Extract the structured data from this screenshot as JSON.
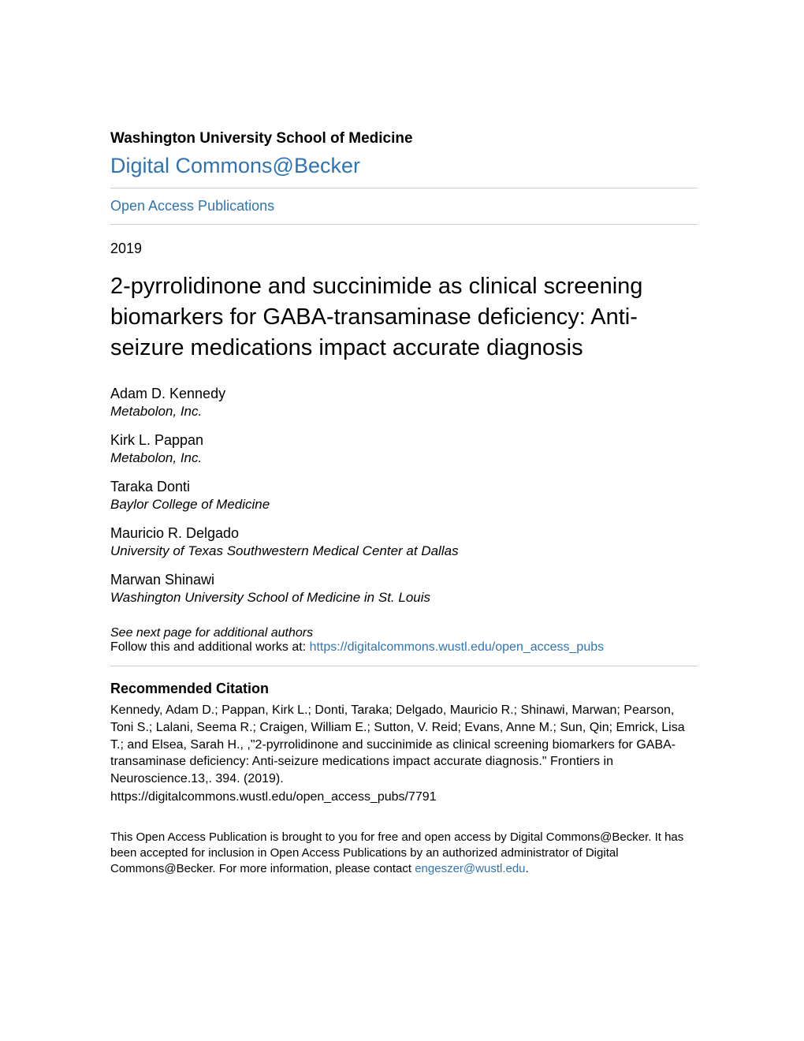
{
  "colors": {
    "link_color": "#2e74b5",
    "text_color": "#000000",
    "divider_color": "#cccccc",
    "background": "#ffffff"
  },
  "typography": {
    "base_family": "Arial, Helvetica, sans-serif",
    "institution_size": 19,
    "repo_size": 27,
    "section_link_size": 18,
    "year_size": 18,
    "title_size": 29,
    "author_name_size": 18,
    "author_affil_size": 17,
    "citation_heading_size": 18,
    "citation_text_size": 16,
    "footer_size": 15
  },
  "header": {
    "institution": "Washington University School of Medicine",
    "repository": "Digital Commons@Becker",
    "section_link": "Open Access Publications"
  },
  "meta": {
    "year": "2019"
  },
  "title": "2-pyrrolidinone and succinimide as clinical screening biomarkers for GABA-transaminase deficiency: Anti-seizure medications impact accurate diagnosis",
  "authors": [
    {
      "name": "Adam D. Kennedy",
      "affiliation": "Metabolon, Inc."
    },
    {
      "name": "Kirk L. Pappan",
      "affiliation": "Metabolon, Inc."
    },
    {
      "name": "Taraka Donti",
      "affiliation": "Baylor College of Medicine"
    },
    {
      "name": "Mauricio R. Delgado",
      "affiliation": "University of Texas Southwestern Medical Center at Dallas"
    },
    {
      "name": "Marwan Shinawi",
      "affiliation": "Washington University School of Medicine in St. Louis"
    }
  ],
  "see_next": "See next page for additional authors",
  "follow": {
    "prefix": "Follow this and additional works at: ",
    "url": "https://digitalcommons.wustl.edu/open_access_pubs"
  },
  "citation": {
    "heading": "Recommended Citation",
    "text": "Kennedy, Adam D.; Pappan, Kirk L.; Donti, Taraka; Delgado, Mauricio R.; Shinawi, Marwan; Pearson, Toni S.; Lalani, Seema R.; Craigen, William E.; Sutton, V. Reid; Evans, Anne M.; Sun, Qin; Emrick, Lisa T.; and Elsea, Sarah H., ,\"2-pyrrolidinone and succinimide as clinical screening biomarkers for GABA-transaminase deficiency: Anti-seizure medications impact accurate diagnosis.\" Frontiers in Neuroscience.13,. 394. (2019).",
    "url": "https://digitalcommons.wustl.edu/open_access_pubs/7791"
  },
  "footer": {
    "text_prefix": "This Open Access Publication is brought to you for free and open access by Digital Commons@Becker. It has been accepted for inclusion in Open Access Publications by an authorized administrator of Digital Commons@Becker. For more information, please contact ",
    "contact_email": "engeszer@wustl.edu",
    "text_suffix": "."
  }
}
